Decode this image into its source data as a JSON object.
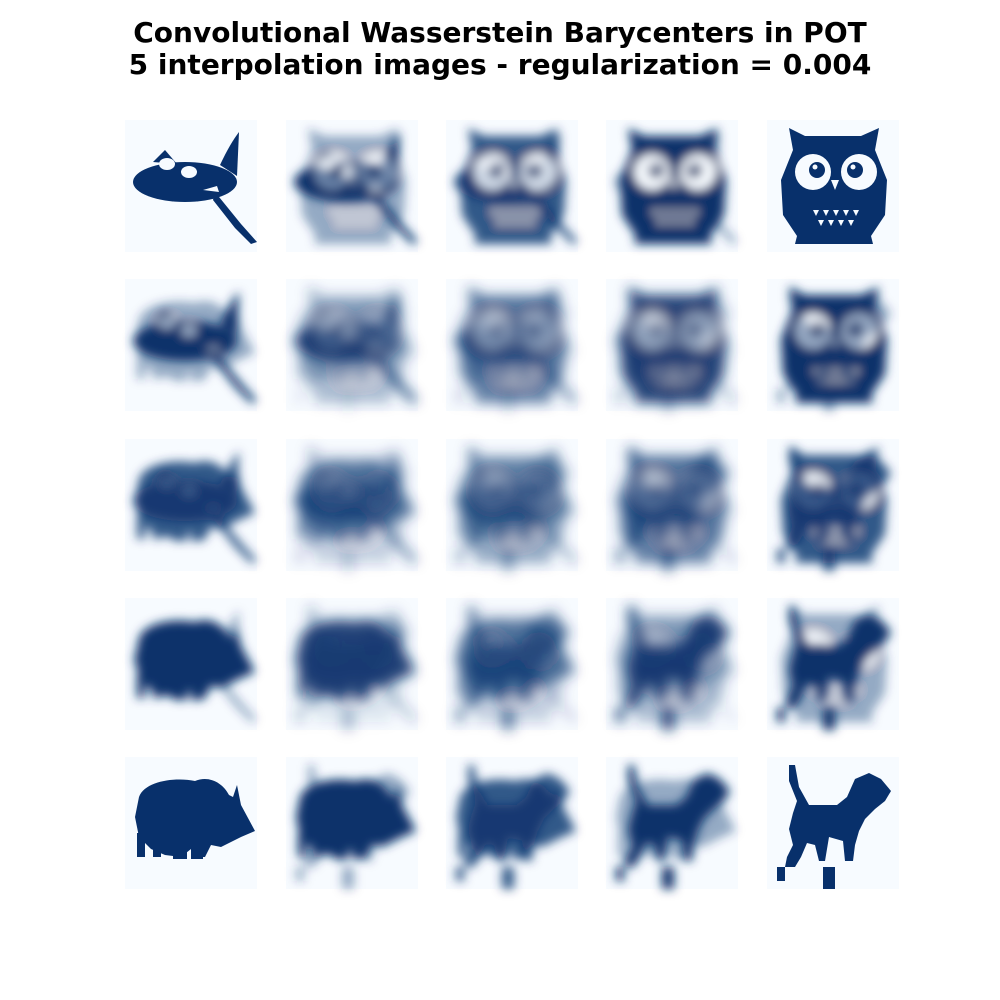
{
  "title_line1": "Convolutional Wasserstein Barycenters in POT",
  "title_line2": "5 interpolation images - regularization = 0.004",
  "chart_data": {
    "type": "heatmap",
    "title": "Convolutional Wasserstein Barycenters in POT\n5 interpolation images - regularization = 0.004",
    "rows": 5,
    "cols": 5,
    "colormap": "Blues",
    "axes": "off",
    "corner_shapes": {
      "top-left": "gimp-logo",
      "top-right": "owl",
      "bottom-left": "rhino",
      "bottom-right": "dog"
    },
    "regularization": 0.004
  }
}
